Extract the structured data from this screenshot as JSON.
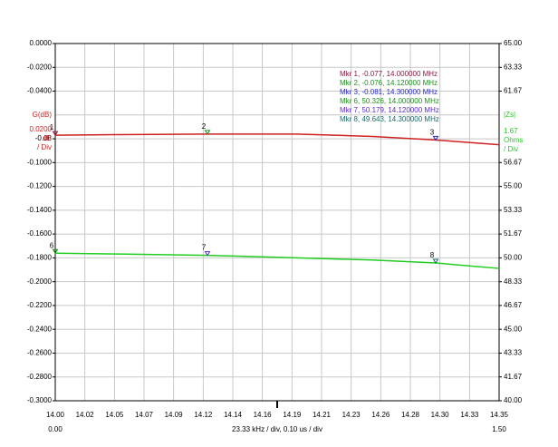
{
  "chart_data": {
    "type": "line",
    "x": [
      14.0,
      14.05,
      14.12,
      14.19,
      14.25,
      14.3,
      14.35
    ],
    "series": [
      {
        "name": "G(dB)",
        "color": "#cc2222",
        "values": [
          -0.077,
          -0.0765,
          -0.076,
          -0.076,
          -0.078,
          -0.081,
          -0.085
        ]
      },
      {
        "name": "|Zs|",
        "color": "#22cc22",
        "axis": "y2",
        "values": [
          50.326,
          50.27,
          50.179,
          50.0,
          49.85,
          49.643,
          49.26
        ]
      }
    ],
    "xlim": [
      14.0,
      14.35
    ],
    "xticks": [
      {
        "value": 14.0,
        "label": "14.00"
      },
      {
        "value": 14.0233,
        "label": "14.02"
      },
      {
        "value": 14.0467,
        "label": "14.05"
      },
      {
        "value": 14.07,
        "label": "14.07"
      },
      {
        "value": 14.0933,
        "label": "14.09"
      },
      {
        "value": 14.1167,
        "label": "14.12"
      },
      {
        "value": 14.14,
        "label": "14.14"
      },
      {
        "value": 14.1633,
        "label": "14.16"
      },
      {
        "value": 14.1867,
        "label": "14.19"
      },
      {
        "value": 14.21,
        "label": "14.21"
      },
      {
        "value": 14.2333,
        "label": "14.23"
      },
      {
        "value": 14.2567,
        "label": "14.26"
      },
      {
        "value": 14.28,
        "label": "14.28"
      },
      {
        "value": 14.3033,
        "label": "14.30"
      },
      {
        "value": 14.3267,
        "label": "14.33"
      },
      {
        "value": 14.35,
        "label": "14.35"
      }
    ],
    "ylim": [
      -0.3,
      0
    ],
    "yticks": [
      {
        "value": 0,
        "label": "0.0000"
      },
      {
        "value": -0.02,
        "label": "-0.0200"
      },
      {
        "value": -0.04,
        "label": "-0.0400"
      },
      {
        "value": -0.08,
        "label": "-0.08"
      },
      {
        "value": -0.1,
        "label": "-0.1000"
      },
      {
        "value": -0.12,
        "label": "-0.1200"
      },
      {
        "value": -0.14,
        "label": "-0.1400"
      },
      {
        "value": -0.16,
        "label": "-0.1600"
      },
      {
        "value": -0.18,
        "label": "-0.1800"
      },
      {
        "value": -0.2,
        "label": "-0.2000"
      },
      {
        "value": -0.22,
        "label": "-0.2200"
      },
      {
        "value": -0.24,
        "label": "-0.2400"
      },
      {
        "value": -0.26,
        "label": "-0.2600"
      },
      {
        "value": -0.28,
        "label": "-0.2800"
      },
      {
        "value": -0.3,
        "label": "-0.3000"
      }
    ],
    "y2lim": [
      40,
      65
    ],
    "y2ticks": [
      {
        "value": 65,
        "label": "65.00"
      },
      63.33,
      61.67,
      56.67,
      {
        "value": 55,
        "label": "55.00"
      },
      53.33,
      51.67,
      {
        "value": 50,
        "label": "50.00"
      },
      48.33,
      46.67,
      {
        "value": 45,
        "label": "45.00"
      },
      43.33,
      41.67,
      {
        "value": 40,
        "label": "40.00"
      }
    ],
    "y_axis_label": [
      "G(dB)",
      "0.0200",
      "dB",
      "/ Div"
    ],
    "y2_axis_label": [
      "|Zs|",
      "1.67",
      "Ohms",
      "/ Div"
    ],
    "x_axis_label": "23.33 kHz / div, 0.10 us / div",
    "time_labels": [
      "0.00",
      "1.50"
    ],
    "markers": [
      {
        "label": "1",
        "x": 14.0,
        "y": -0.077,
        "text": "Mkr 1, -0.077, 14.000000 MHz",
        "color": "#8b1a3a"
      },
      {
        "label": "2",
        "x": 14.12,
        "y": -0.076,
        "text": "Mkr 2, -0.076, 14.120000 MHz",
        "color": "#1f8f1f"
      },
      {
        "label": "3",
        "x": 14.3,
        "y": -0.081,
        "text": "Mkr 3, -0.081, 14.300000 MHz",
        "color": "#2a2ad0"
      },
      {
        "label": "6",
        "x": 14.0,
        "y": 50.326,
        "axis": "y2",
        "text": "Mkr 6, 50.326, 14.000000 MHz",
        "color": "#1f8f1f"
      },
      {
        "label": "7",
        "x": 14.12,
        "y": 50.179,
        "axis": "y2",
        "text": "Mkr 7, 50.179, 14.120000 MHz",
        "color": "#5a2ad0"
      },
      {
        "label": "8",
        "x": 14.3,
        "y": 49.643,
        "axis": "y2",
        "text": "Mkr 8, 49.643, 14.300000 MHz",
        "color": "#1a6a6a"
      }
    ]
  }
}
